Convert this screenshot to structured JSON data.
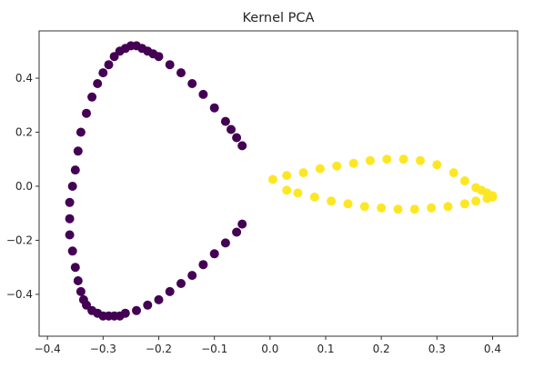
{
  "chart_data": {
    "type": "scatter",
    "title": "Kernel PCA",
    "xlabel": "",
    "ylabel": "",
    "xlim": [
      -0.415,
      0.445
    ],
    "ylim": [
      -0.555,
      0.575
    ],
    "xticks": [
      -0.4,
      -0.3,
      -0.2,
      -0.1,
      0.0,
      0.1,
      0.2,
      0.3,
      0.4
    ],
    "xtick_labels": [
      "−0.4",
      "−0.3",
      "−0.2",
      "−0.1",
      "0.0",
      "0.1",
      "0.2",
      "0.3",
      "0.4"
    ],
    "yticks": [
      -0.4,
      -0.2,
      0.0,
      0.2,
      0.4
    ],
    "ytick_labels": [
      "−0.4",
      "−0.2",
      "0.0",
      "0.2",
      "0.4"
    ],
    "grid": false,
    "legend": false,
    "colors": {
      "class_0": "#440154",
      "class_1": "#fde725"
    },
    "series": [
      {
        "color": "#440154",
        "x": [
          -0.05,
          -0.06,
          -0.07,
          -0.08,
          -0.1,
          -0.12,
          -0.14,
          -0.16,
          -0.18,
          -0.2,
          -0.21,
          -0.22,
          -0.23,
          -0.24,
          -0.25,
          -0.26,
          -0.27,
          -0.28,
          -0.29,
          -0.3,
          -0.31,
          -0.32,
          -0.33,
          -0.34,
          -0.345,
          -0.35,
          -0.355,
          -0.36,
          -0.36,
          -0.36,
          -0.355,
          -0.35,
          -0.345,
          -0.34,
          -0.335,
          -0.33,
          -0.32,
          -0.31,
          -0.3,
          -0.29,
          -0.28,
          -0.27,
          -0.26,
          -0.24,
          -0.22,
          -0.2,
          -0.18,
          -0.16,
          -0.14,
          -0.12,
          -0.1,
          -0.08,
          -0.06,
          -0.05
        ],
        "y": [
          0.15,
          0.18,
          0.21,
          0.24,
          0.29,
          0.34,
          0.38,
          0.42,
          0.45,
          0.48,
          0.49,
          0.5,
          0.51,
          0.52,
          0.52,
          0.51,
          0.5,
          0.48,
          0.45,
          0.42,
          0.38,
          0.33,
          0.27,
          0.2,
          0.13,
          0.06,
          0.0,
          -0.06,
          -0.12,
          -0.18,
          -0.24,
          -0.3,
          -0.35,
          -0.39,
          -0.42,
          -0.44,
          -0.46,
          -0.47,
          -0.48,
          -0.48,
          -0.48,
          -0.48,
          -0.47,
          -0.46,
          -0.44,
          -0.42,
          -0.39,
          -0.36,
          -0.33,
          -0.29,
          -0.25,
          -0.21,
          -0.17,
          -0.14
        ]
      },
      {
        "color": "#fde725",
        "x": [
          0.005,
          0.03,
          0.06,
          0.09,
          0.12,
          0.15,
          0.18,
          0.21,
          0.24,
          0.27,
          0.3,
          0.33,
          0.35,
          0.37,
          0.38,
          0.39,
          0.4,
          0.4,
          0.39,
          0.37,
          0.35,
          0.32,
          0.29,
          0.26,
          0.23,
          0.2,
          0.17,
          0.14,
          0.11,
          0.08,
          0.05,
          0.03
        ],
        "y": [
          0.025,
          0.04,
          0.05,
          0.065,
          0.075,
          0.085,
          0.095,
          0.1,
          0.1,
          0.095,
          0.08,
          0.05,
          0.02,
          -0.005,
          -0.015,
          -0.025,
          -0.035,
          -0.04,
          -0.045,
          -0.055,
          -0.065,
          -0.075,
          -0.08,
          -0.085,
          -0.085,
          -0.08,
          -0.075,
          -0.065,
          -0.055,
          -0.04,
          -0.025,
          -0.015
        ]
      }
    ]
  }
}
